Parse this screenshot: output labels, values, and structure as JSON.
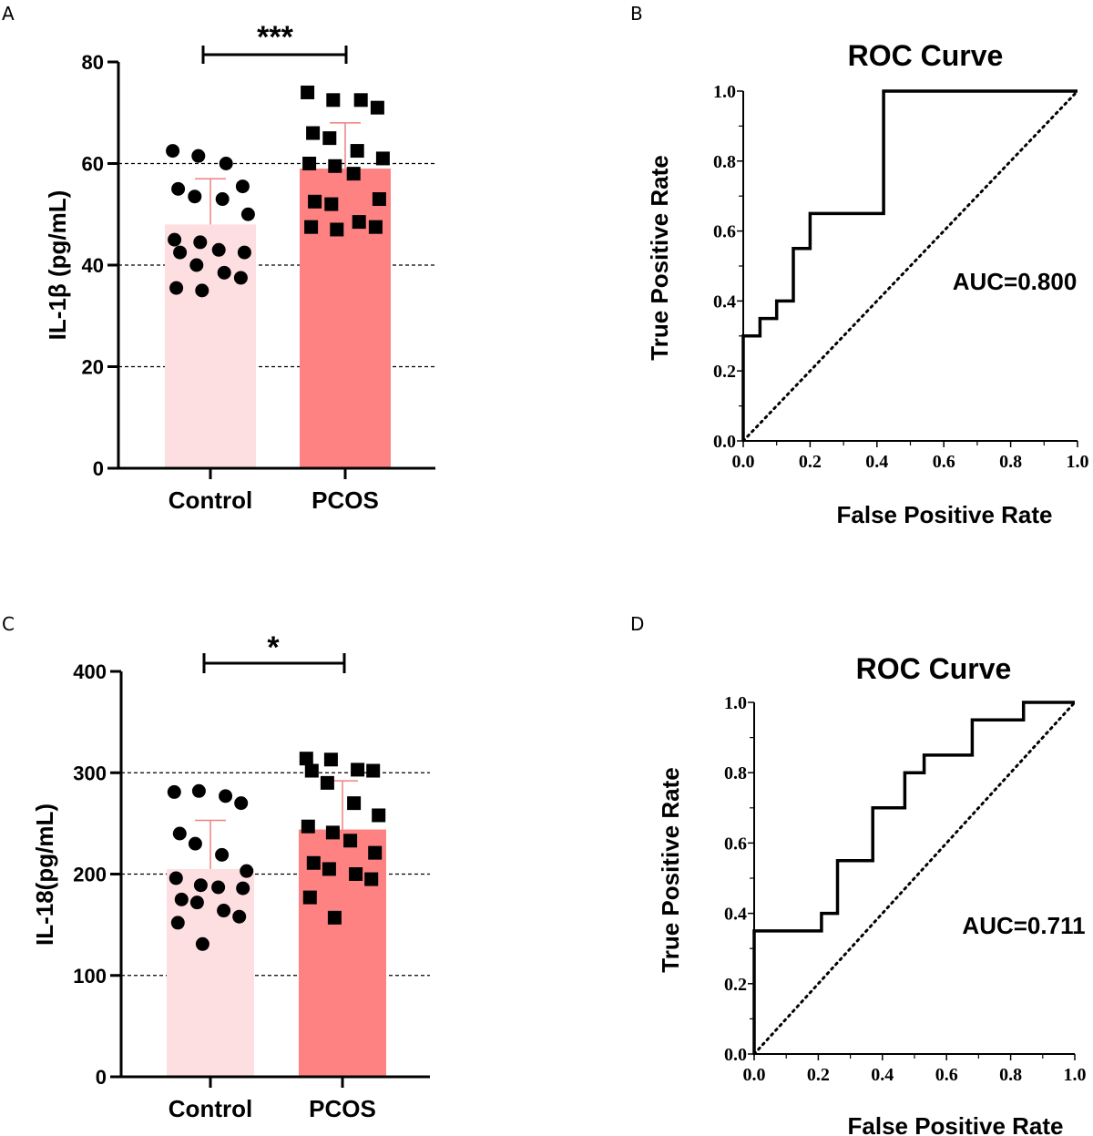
{
  "colors": {
    "control_bar": "#fddfe1",
    "pcos_bar": "#fe8281",
    "error_bar": "#f08080",
    "ink": "#000000"
  },
  "panels": {
    "A": "A",
    "B": "B",
    "C": "C",
    "D": "D"
  },
  "chart_data": [
    {
      "panel": "A",
      "type": "bar",
      "ylabel": "IL-1β (pg/mL)",
      "ylim": [
        0,
        80
      ],
      "yticks": [
        "0",
        "20",
        "40",
        "60",
        "80"
      ],
      "grid": "dashed at 20, 40, 60",
      "categories": [
        "Control",
        "PCOS"
      ],
      "means": [
        48,
        59
      ],
      "sd": [
        9,
        9
      ],
      "significance": "***",
      "points": [
        [
          62.5,
          61.5,
          60,
          55.5,
          55,
          53.5,
          53,
          50,
          45,
          44.5,
          43,
          42.5,
          42.5,
          40,
          38.5,
          37.5,
          35.5,
          35
        ],
        [
          74,
          72.5,
          72.5,
          71,
          66,
          65,
          62.5,
          61,
          60,
          59.5,
          58,
          53,
          52.5,
          52,
          48.5,
          47.5,
          47.5,
          47
        ]
      ]
    },
    {
      "panel": "B",
      "type": "line",
      "title": "ROC Curve",
      "xlabel": "False Positive Rate",
      "ylabel": "True Positive Rate",
      "xlim": [
        0,
        1
      ],
      "ylim": [
        0,
        1
      ],
      "xticks": [
        "0.0",
        "0.2",
        "0.4",
        "0.6",
        "0.8",
        "1.0"
      ],
      "yticks": [
        "0.0",
        "0.2",
        "0.4",
        "0.6",
        "0.8",
        "1.0"
      ],
      "annotation": "AUC=0.800",
      "series": [
        {
          "name": "ROC",
          "style": "solid",
          "x": [
            0,
            0,
            0.05,
            0.05,
            0.1,
            0.1,
            0.15,
            0.15,
            0.2,
            0.2,
            0.42,
            0.42,
            1.0
          ],
          "y": [
            0,
            0.3,
            0.3,
            0.35,
            0.35,
            0.4,
            0.4,
            0.55,
            0.55,
            0.65,
            0.65,
            1.0,
            1.0
          ]
        },
        {
          "name": "Reference",
          "style": "dotted",
          "x": [
            0,
            1
          ],
          "y": [
            0,
            1
          ]
        }
      ]
    },
    {
      "panel": "C",
      "type": "bar",
      "ylabel": "IL-18(pg/mL)",
      "ylim": [
        0,
        400
      ],
      "yticks": [
        "0",
        "100",
        "200",
        "300",
        "400"
      ],
      "grid": "dashed at 100, 200, 300",
      "categories": [
        "Control",
        "PCOS"
      ],
      "means": [
        205,
        244
      ],
      "sd": [
        48,
        48
      ],
      "significance": "*",
      "points": [
        [
          281,
          282,
          277,
          270,
          240,
          230,
          219,
          203,
          196,
          189,
          187,
          186,
          175,
          172,
          164,
          158,
          152,
          131
        ],
        [
          314,
          313,
          303,
          302,
          302,
          290,
          270,
          258,
          247,
          241,
          233,
          221,
          211,
          205,
          200,
          195,
          177,
          157
        ]
      ]
    },
    {
      "panel": "D",
      "type": "line",
      "title": "ROC Curve",
      "xlabel": "False Positive Rate",
      "ylabel": "True Positive Rate",
      "xlim": [
        0,
        1
      ],
      "ylim": [
        0,
        1
      ],
      "xticks": [
        "0.0",
        "0.2",
        "0.4",
        "0.6",
        "0.8",
        "1.0"
      ],
      "yticks": [
        "0.0",
        "0.2",
        "0.4",
        "0.6",
        "0.8",
        "1.0"
      ],
      "annotation": "AUC=0.711",
      "series": [
        {
          "name": "ROC",
          "style": "solid",
          "x": [
            0,
            0,
            0.21,
            0.21,
            0.26,
            0.26,
            0.37,
            0.37,
            0.47,
            0.47,
            0.53,
            0.53,
            0.68,
            0.68,
            0.84,
            0.84,
            1.0
          ],
          "y": [
            0,
            0.35,
            0.35,
            0.4,
            0.4,
            0.55,
            0.55,
            0.7,
            0.7,
            0.8,
            0.8,
            0.85,
            0.85,
            0.95,
            0.95,
            1.0,
            1.0
          ]
        },
        {
          "name": "Reference",
          "style": "dotted",
          "x": [
            0,
            1
          ],
          "y": [
            0,
            1
          ]
        }
      ]
    }
  ]
}
